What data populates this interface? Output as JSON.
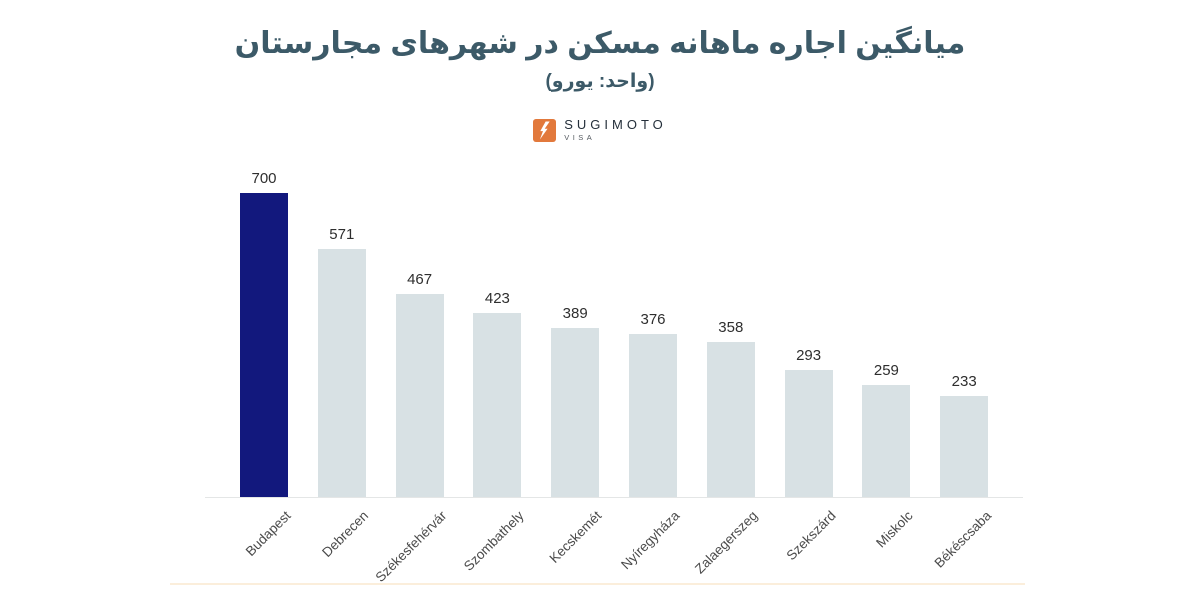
{
  "title": "میانگین اجاره ماهانه مسکن در شهرهای مجارستان",
  "subtitle": "(واحد: یورو)",
  "logo": {
    "name": "SUGIMOTO",
    "sub": "VISA",
    "icon": "lightning-bolt-icon",
    "icon_color": "#e2793c"
  },
  "colors": {
    "title_text": "#3c5a68",
    "highlight_bar": "#12187d",
    "bar": "#d8e1e4",
    "value_label": "#2e2e2e",
    "axis_label": "#4a4a4a",
    "axis_line": "#e4e6e6",
    "bottom_rule": "#fbeedb"
  },
  "chart_data": {
    "type": "bar",
    "title": "میانگین اجاره ماهانه مسکن در شهرهای مجارستان",
    "subtitle": "(واحد: یورو)",
    "xlabel": "",
    "ylabel": "",
    "unit": "EUR",
    "categories": [
      "Budapest",
      "Debrecen",
      "Székesfehérvár",
      "Szombathely",
      "Kecskemét",
      "Nyíregyháza",
      "Zalaegerszeg",
      "Szekszárd",
      "Miskolc",
      "Békéscsaba"
    ],
    "values": [
      700,
      571,
      467,
      423,
      389,
      376,
      358,
      293,
      259,
      233
    ],
    "highlight_index": 0,
    "ylim": [
      0,
      700
    ],
    "grid": false,
    "legend": "none",
    "value_labels": true,
    "x_tick_rotation_deg": 45
  }
}
